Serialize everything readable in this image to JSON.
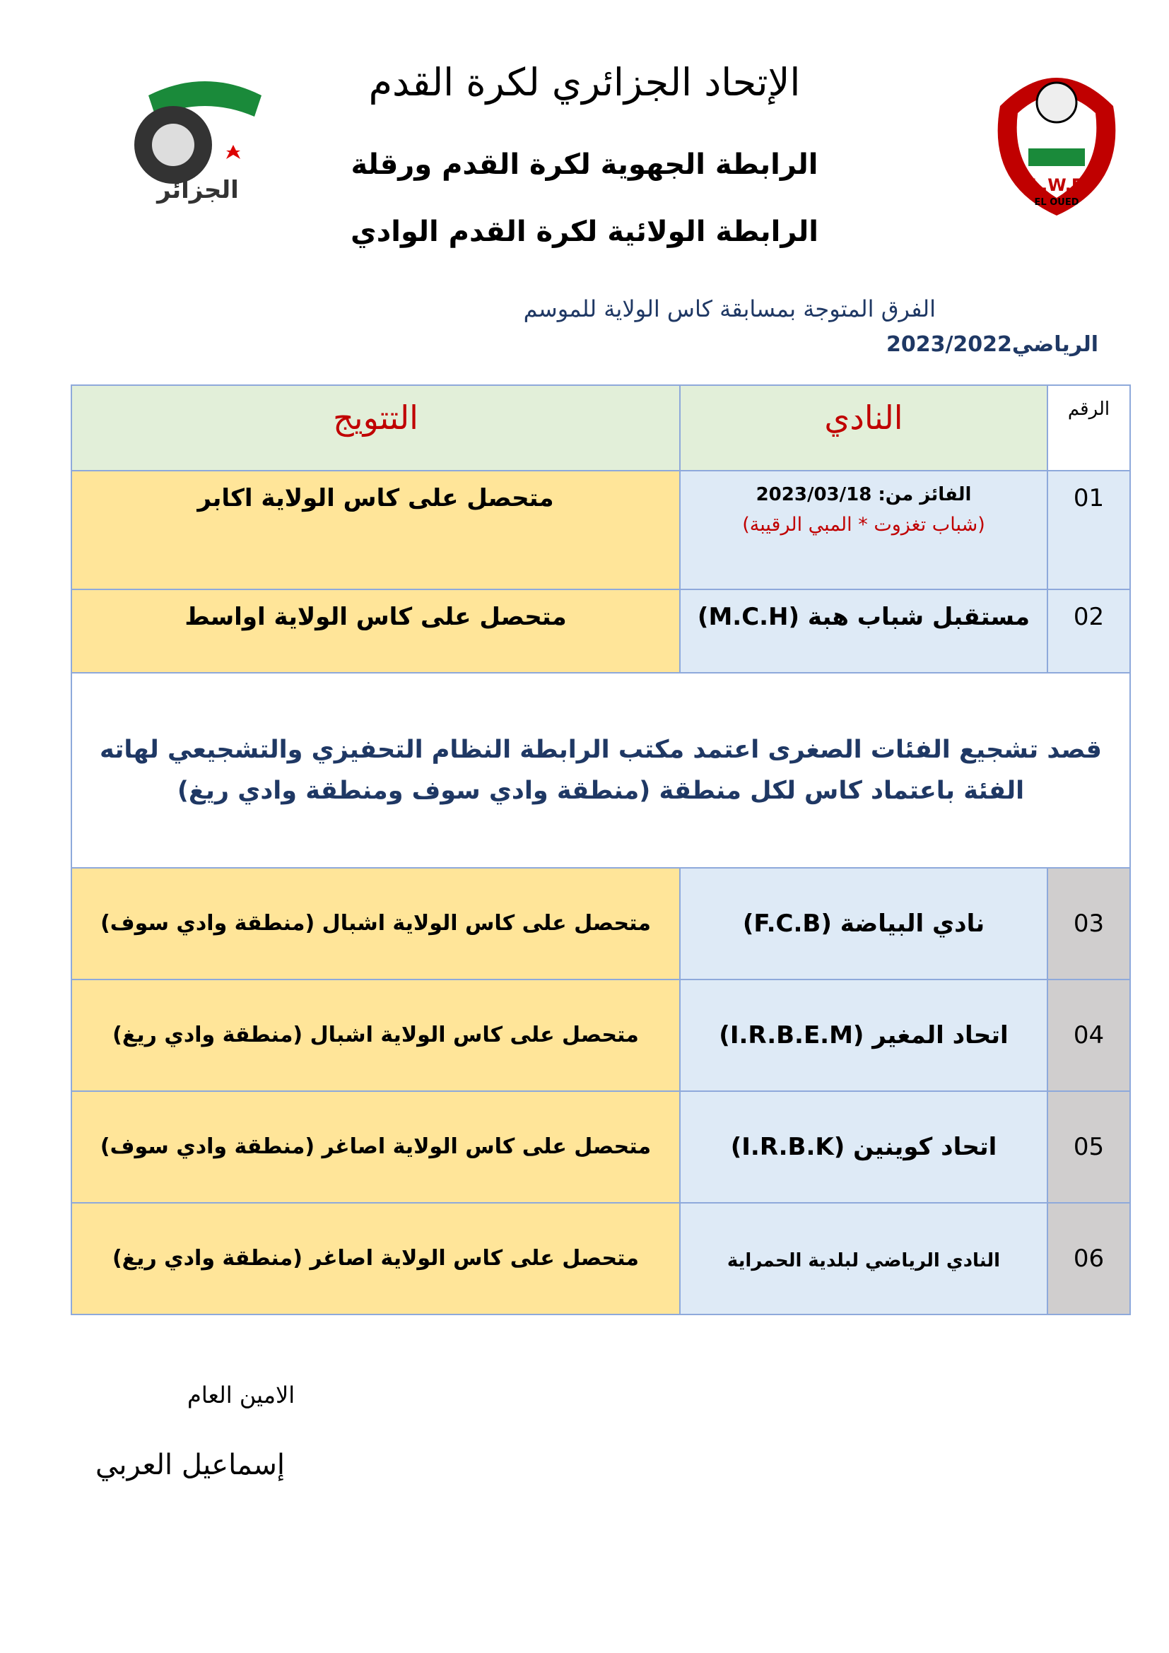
{
  "header": {
    "title": "الإتحاد الجزائري لكرة القدم",
    "line2": "الرابطة الجهوية لكرة القدم ورقلة",
    "line3": "الرابطة الولائية لكرة القدم الوادي",
    "logo_left_text": "الجزائر",
    "logo_right_text": "L.W.F",
    "logo_right_sub": "EL OUED"
  },
  "subtitle": {
    "line1": "الفرق المتوجة بمسابقة كاس الولاية للموسم",
    "line2": "الرياضي2023/2022"
  },
  "table": {
    "columns": [
      "الرقم",
      "النادي",
      "التتويج"
    ],
    "rows": [
      {
        "rank": "01",
        "winner_label": "الفائز من: 2023/03/18",
        "club": "(شباب تغزوت * المبي الرقيبة)",
        "award": "متحصل على كاس الولاية اكابر"
      },
      {
        "rank": "02",
        "club": "مستقبل شباب هبة (M.C.H)",
        "award": "متحصل على كاس الولاية اواسط"
      }
    ],
    "note": "قصد تشجيع الفئات الصغرى اعتمد مكتب الرابطة النظام التحفيزي والتشجيعي لهاته الفئة باعتماد كاس لكل منطقة (منطقة وادي سوف ومنطقة وادي ريغ)",
    "rows_after": [
      {
        "rank": "03",
        "club": "نادي البياضة (F.C.B)",
        "award": "متحصل على كاس الولاية اشبال (منطقة وادي سوف)"
      },
      {
        "rank": "04",
        "club": "اتحاد المغير (I.R.B.E.M)",
        "award": "متحصل على كاس الولاية اشبال (منطقة وادي ريغ)"
      },
      {
        "rank": "05",
        "club": "اتحاد كوينين (I.R.B.K)",
        "award": "متحصل على كاس الولاية اصاغر (منطقة وادي سوف)"
      },
      {
        "rank": "06",
        "club": "النادي الرياضي لبلدية الحمراية",
        "award": "متحصل على كاس الولاية اصاغر (منطقة وادي ريغ)"
      }
    ]
  },
  "signature": {
    "role": "الامين العام",
    "name": "إسماعيل العربي"
  }
}
